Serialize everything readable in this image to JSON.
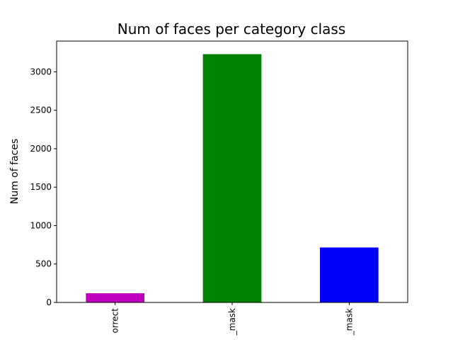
{
  "chart_data": {
    "type": "bar",
    "title": "Num of faces per category class",
    "xlabel": "",
    "ylabel": "Num of faces",
    "categories": [
      "orrect",
      "_mask",
      "_mask"
    ],
    "values": [
      120,
      3230,
      715
    ],
    "colors": [
      "#bf00bf",
      "#008000",
      "#0000ff"
    ],
    "ylim": [
      0,
      3400
    ],
    "yticks": [
      0,
      500,
      1000,
      1500,
      2000,
      2500,
      3000
    ],
    "grid": false,
    "legend": "none"
  }
}
